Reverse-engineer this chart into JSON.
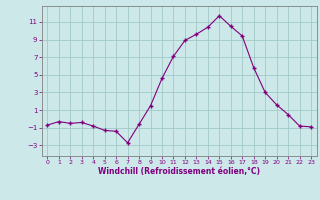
{
  "x": [
    0,
    1,
    2,
    3,
    4,
    5,
    6,
    7,
    8,
    9,
    10,
    11,
    12,
    13,
    14,
    15,
    16,
    17,
    18,
    19,
    20,
    21,
    22,
    23
  ],
  "y": [
    -0.7,
    -0.3,
    -0.5,
    -0.4,
    -0.8,
    -1.3,
    -1.4,
    -2.7,
    -0.6,
    1.5,
    4.6,
    7.1,
    8.9,
    9.6,
    10.4,
    11.7,
    10.5,
    9.4,
    5.8,
    3.0,
    1.6,
    0.5,
    -0.8,
    -0.9
  ],
  "line_color": "#800080",
  "marker_color": "#800080",
  "bg_color": "#cce8e8",
  "grid_color": "#a0c8c8",
  "tick_color": "#800080",
  "axis_color": "#808080",
  "xlabel": "Windchill (Refroidissement éolien,°C)",
  "yticks": [
    -3,
    -1,
    1,
    3,
    5,
    7,
    9,
    11
  ],
  "ylim": [
    -4.2,
    12.8
  ],
  "xlim": [
    -0.5,
    23.5
  ]
}
